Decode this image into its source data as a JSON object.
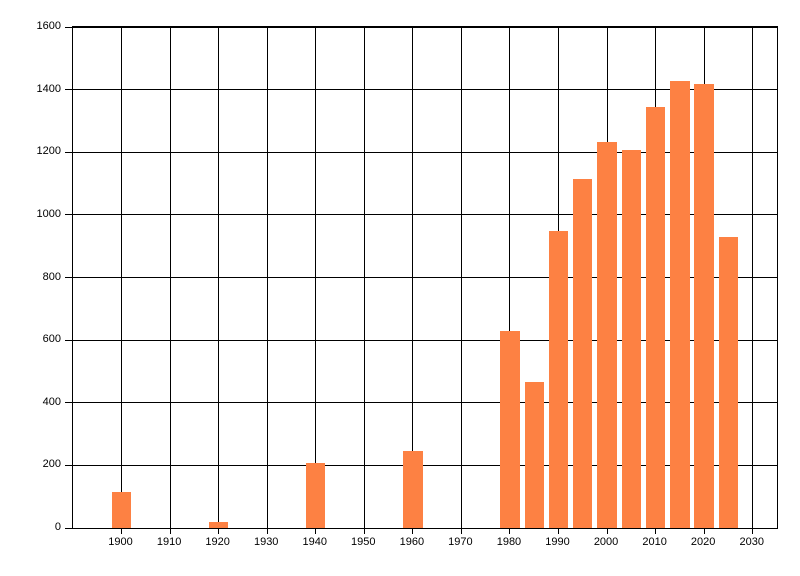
{
  "chart_data": {
    "type": "bar",
    "title": "",
    "xlabel": "",
    "ylabel": "",
    "categories": [
      1900,
      1920,
      1940,
      1960,
      1980,
      1985,
      1990,
      1995,
      2000,
      2005,
      2010,
      2015,
      2020,
      2025
    ],
    "values": [
      115,
      20,
      209,
      246,
      628,
      467,
      949,
      1114,
      1233,
      1208,
      1344,
      1426,
      1418,
      928
    ],
    "x_ticks": [
      1900,
      1910,
      1920,
      1930,
      1940,
      1950,
      1960,
      1970,
      1980,
      1990,
      2000,
      2010,
      2020,
      2030
    ],
    "y_ticks": [
      0,
      200,
      400,
      600,
      800,
      1000,
      1200,
      1400,
      1600
    ],
    "xlim": [
      1890,
      2035
    ],
    "ylim": [
      0,
      1600
    ],
    "bar_width_years": 4,
    "grid": true,
    "legend": "none",
    "bar_color": "#FD8143",
    "grid_color": "#000000",
    "text_color": "#000000",
    "background_color": "#FFFFFF"
  }
}
